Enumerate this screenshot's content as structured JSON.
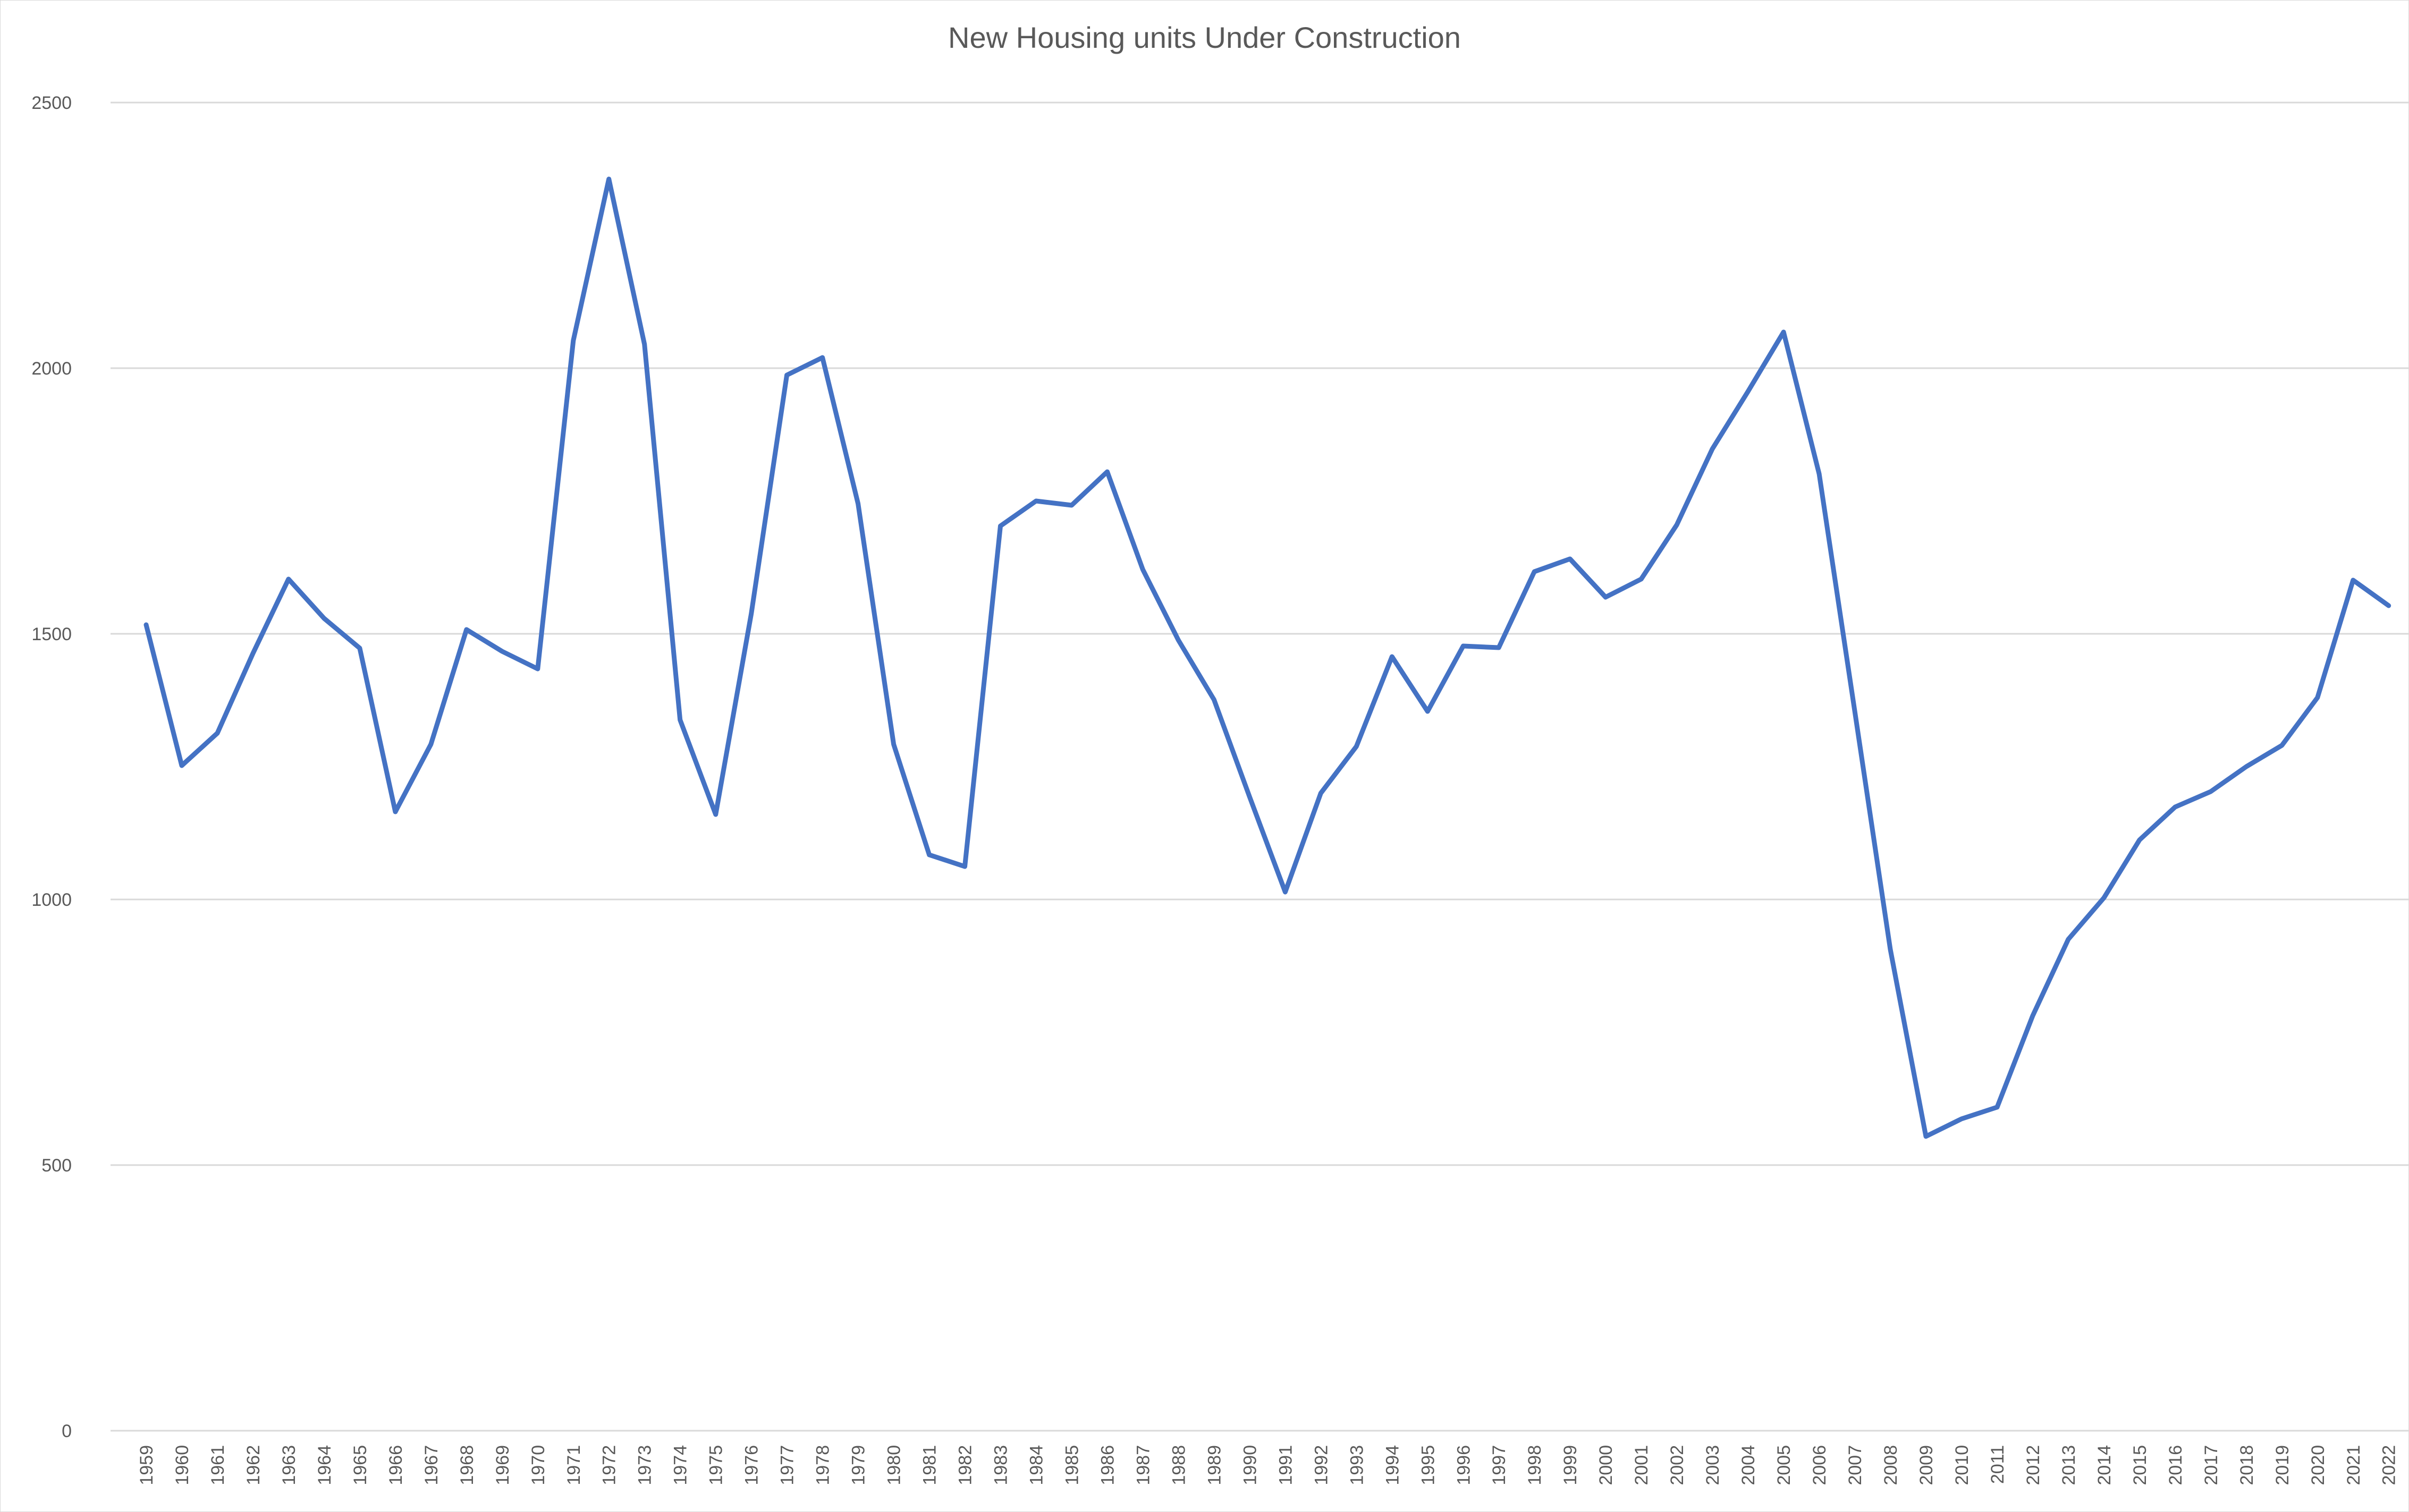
{
  "chart_data": {
    "type": "line",
    "title": "New Housing units Under Construction",
    "xlabel": "",
    "ylabel": "",
    "ylim": [
      0,
      2500
    ],
    "y_ticks": [
      0,
      500,
      1000,
      1500,
      2000,
      2500
    ],
    "grid": "horizontal",
    "legend": "none",
    "line_color": "#4472c4",
    "x": [
      "1959",
      "1960",
      "1961",
      "1962",
      "1963",
      "1964",
      "1965",
      "1966",
      "1967",
      "1968",
      "1969",
      "1970",
      "1971",
      "1972",
      "1973",
      "1974",
      "1975",
      "1976",
      "1977",
      "1978",
      "1979",
      "1980",
      "1981",
      "1982",
      "1983",
      "1984",
      "1985",
      "1986",
      "1987",
      "1988",
      "1989",
      "1990",
      "1991",
      "1992",
      "1993",
      "1994",
      "1995",
      "1996",
      "1997",
      "1998",
      "1999",
      "2000",
      "2001",
      "2002",
      "2003",
      "2004",
      "2005",
      "2006",
      "2007",
      "2008",
      "2009",
      "2010",
      "2011",
      "2012",
      "2013",
      "2014",
      "2015",
      "2016",
      "2017",
      "2018",
      "2019",
      "2020",
      "2021",
      "2022"
    ],
    "series": [
      {
        "values": [
          1517,
          1252,
          1313,
          1463,
          1603,
          1529,
          1473,
          1165,
          1292,
          1508,
          1467,
          1434,
          2052,
          2356,
          2045,
          1338,
          1160,
          1538,
          1987,
          2020,
          1745,
          1292,
          1084,
          1062,
          1703,
          1750,
          1742,
          1805,
          1621,
          1488,
          1376,
          1193,
          1014,
          1200,
          1288,
          1457,
          1354,
          1477,
          1474,
          1617,
          1641,
          1569,
          1603,
          1705,
          1848,
          1956,
          2068,
          1801,
          1355,
          906,
          554,
          587,
          609,
          781,
          925,
          1003,
          1112,
          1174,
          1203,
          1250,
          1290,
          1380,
          1601,
          1553
        ]
      }
    ]
  }
}
